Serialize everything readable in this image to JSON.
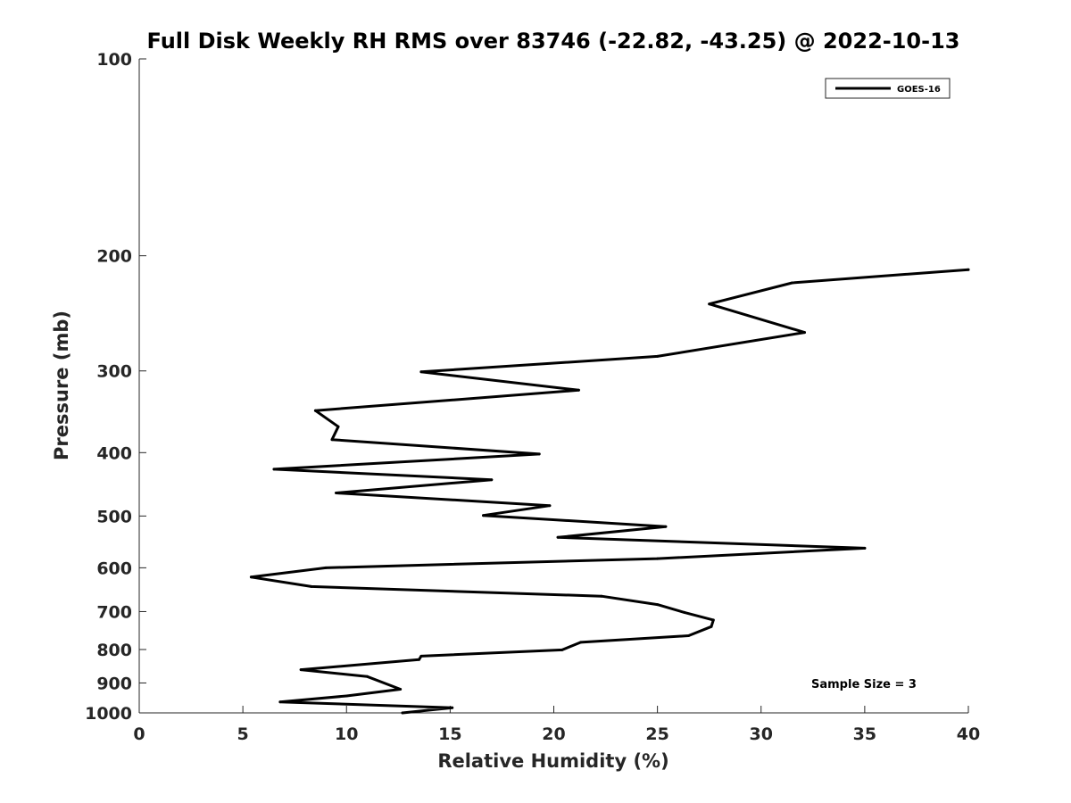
{
  "chart_data": {
    "type": "line",
    "title": "Full Disk Weekly RH RMS over 83746 (-22.82, -43.25) @ 2022-10-13",
    "xlabel": "Relative Humidity (%)",
    "ylabel": "Pressure (mb)",
    "xlim": [
      0,
      40
    ],
    "ylim": [
      1000,
      100
    ],
    "yscale": "log",
    "y_reversed": true,
    "grid": false,
    "legend_position": "top-right",
    "xticks": [
      "0",
      "5",
      "10",
      "15",
      "20",
      "25",
      "30",
      "35",
      "40"
    ],
    "yticks": [
      "100",
      "200",
      "300",
      "400",
      "500",
      "600",
      "700",
      "800",
      "900",
      "1000"
    ],
    "series": [
      {
        "name": "GOES-16",
        "color": "#000000",
        "points": [
          {
            "x": 40.0,
            "y": 210
          },
          {
            "x": 31.5,
            "y": 220
          },
          {
            "x": 27.5,
            "y": 237
          },
          {
            "x": 32.1,
            "y": 262
          },
          {
            "x": 25.0,
            "y": 285
          },
          {
            "x": 13.6,
            "y": 301
          },
          {
            "x": 21.2,
            "y": 321
          },
          {
            "x": 8.5,
            "y": 345
          },
          {
            "x": 9.6,
            "y": 365
          },
          {
            "x": 9.3,
            "y": 382
          },
          {
            "x": 19.3,
            "y": 402
          },
          {
            "x": 6.5,
            "y": 424
          },
          {
            "x": 17.0,
            "y": 440
          },
          {
            "x": 9.5,
            "y": 461
          },
          {
            "x": 19.8,
            "y": 482
          },
          {
            "x": 16.6,
            "y": 499
          },
          {
            "x": 25.4,
            "y": 519
          },
          {
            "x": 20.2,
            "y": 539
          },
          {
            "x": 35.0,
            "y": 560
          },
          {
            "x": 25.0,
            "y": 581
          },
          {
            "x": 9.0,
            "y": 600
          },
          {
            "x": 5.4,
            "y": 620
          },
          {
            "x": 8.3,
            "y": 641
          },
          {
            "x": 22.3,
            "y": 663
          },
          {
            "x": 25.0,
            "y": 683
          },
          {
            "x": 26.3,
            "y": 702
          },
          {
            "x": 27.7,
            "y": 721
          },
          {
            "x": 27.6,
            "y": 738
          },
          {
            "x": 26.5,
            "y": 762
          },
          {
            "x": 21.3,
            "y": 780
          },
          {
            "x": 20.4,
            "y": 801
          },
          {
            "x": 13.6,
            "y": 819
          },
          {
            "x": 13.5,
            "y": 829
          },
          {
            "x": 7.8,
            "y": 859
          },
          {
            "x": 11.0,
            "y": 880
          },
          {
            "x": 12.6,
            "y": 920
          },
          {
            "x": 10.0,
            "y": 942
          },
          {
            "x": 6.8,
            "y": 962
          },
          {
            "x": 15.1,
            "y": 982
          },
          {
            "x": 12.7,
            "y": 1000
          }
        ]
      }
    ],
    "annotations": [
      {
        "text": "Sample Size = 3"
      }
    ]
  }
}
